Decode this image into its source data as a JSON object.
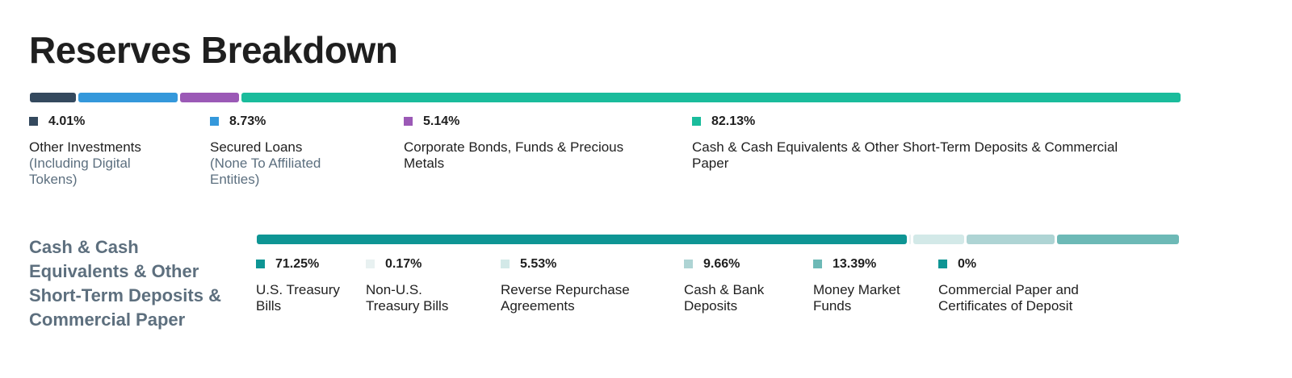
{
  "page": {
    "title": "Reserves Breakdown"
  },
  "chart_data": [
    {
      "type": "bar",
      "stacked": true,
      "orientation": "horizontal",
      "title": "Reserves Breakdown",
      "unit": "%",
      "categories": [
        "Other Investments (Including Digital Tokens)",
        "Secured Loans (None To Affiliated Entities)",
        "Corporate Bonds, Funds & Precious Metals",
        "Cash & Cash Equivalents & Other Short-Term Deposits & Commercial Paper"
      ],
      "values": [
        4.01,
        8.73,
        5.14,
        82.13
      ],
      "colors": [
        "#34495e",
        "#3498db",
        "#9b59b6",
        "#1abc9c"
      ],
      "items": [
        {
          "pct": "4.01%",
          "label": "Other Investments",
          "sub": "(Including Digital Tokens)"
        },
        {
          "pct": "8.73%",
          "label": "Secured Loans",
          "sub": "(None To Affiliated Entities)"
        },
        {
          "pct": "5.14%",
          "label": "Corporate Bonds, Funds & Precious Metals",
          "sub": ""
        },
        {
          "pct": "82.13%",
          "label": "Cash & Cash Equivalents & Other Short-Term Deposits & Commercial Paper",
          "sub": ""
        }
      ]
    },
    {
      "type": "bar",
      "stacked": true,
      "orientation": "horizontal",
      "title": "Cash & Cash Equivalents & Other Short-Term Deposits & Commercial Paper",
      "unit": "%",
      "categories": [
        "U.S. Treasury Bills",
        "Non-U.S. Treasury Bills",
        "Reverse Repurchase Agreements",
        "Cash & Bank Deposits",
        "Money Market Funds",
        "Commercial Paper and Certificates of Deposit"
      ],
      "values": [
        71.25,
        0.17,
        5.53,
        9.66,
        13.39,
        0
      ],
      "colors": [
        "#0e9594",
        "#e8f1f1",
        "#d3e9e8",
        "#aed4d4",
        "#6db9b6",
        "#0e9594"
      ],
      "items": [
        {
          "pct": "71.25%",
          "label": "U.S. Treasury Bills"
        },
        {
          "pct": "0.17%",
          "label": "Non-U.S. Treasury Bills"
        },
        {
          "pct": "5.53%",
          "label": "Reverse Repurchase Agreements"
        },
        {
          "pct": "9.66%",
          "label": "Cash & Bank Deposits"
        },
        {
          "pct": "13.39%",
          "label": "Money Market Funds"
        },
        {
          "pct": "0%",
          "label": "Commercial Paper and Certificates of Deposit"
        }
      ]
    }
  ]
}
